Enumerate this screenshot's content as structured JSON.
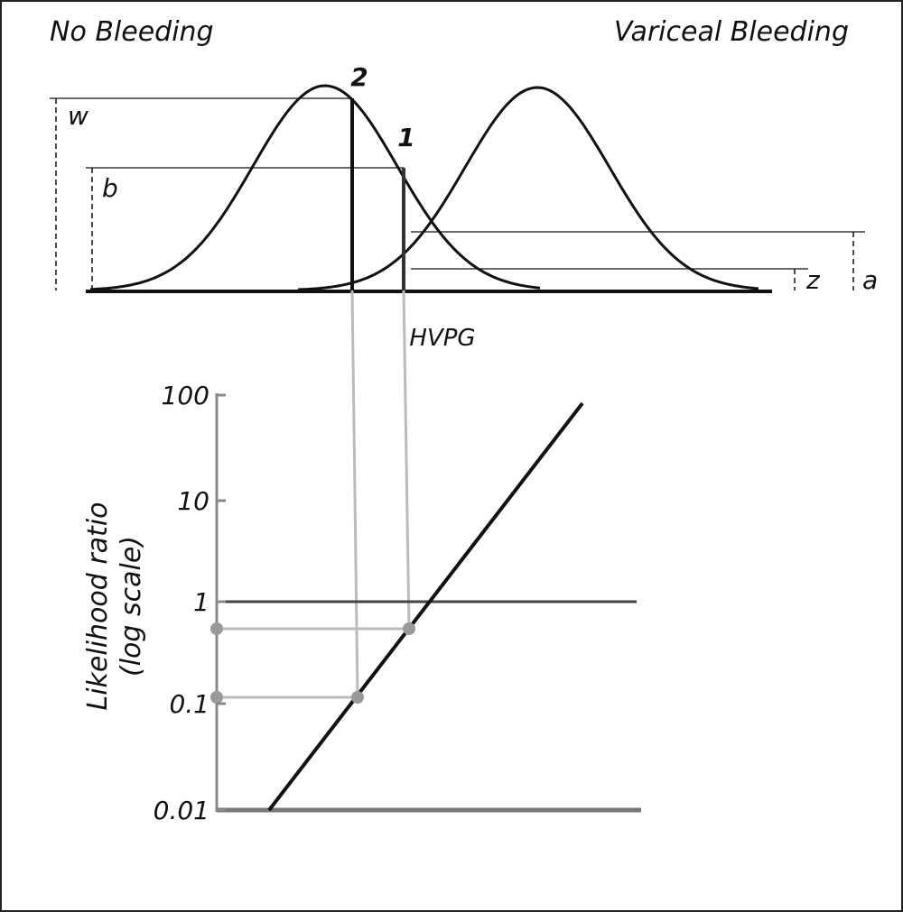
{
  "header": {
    "left_group": "No Bleeding",
    "right_group": "Variceal Bleeding"
  },
  "thresholds": {
    "first": "1",
    "second": "2"
  },
  "heights": {
    "w": "w",
    "b": "b",
    "z": "z",
    "a": "a"
  },
  "x_axis": {
    "label": "HVPG"
  },
  "y_axis": {
    "label_line1": "Likelihood ratio",
    "label_line2": "(log scale)",
    "ticks": [
      "100",
      "10",
      "1",
      "0.1",
      "0.01"
    ]
  }
}
